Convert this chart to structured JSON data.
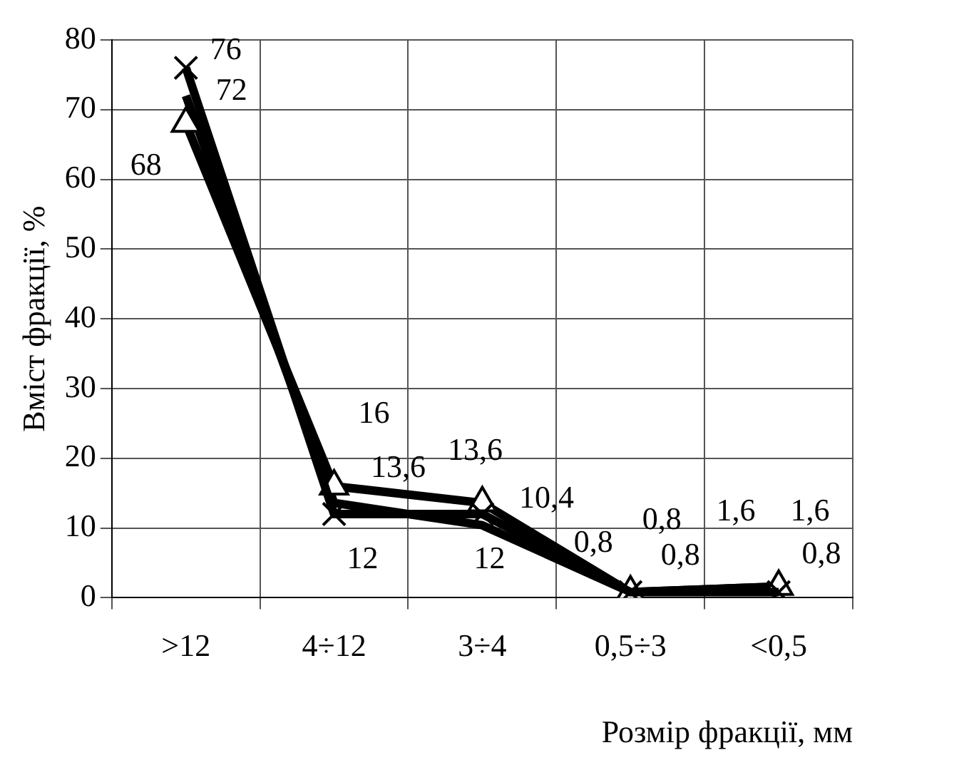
{
  "chart_data": {
    "type": "line",
    "xlabel": "Розмір фракції, мм",
    "ylabel": "Вміст фракції, %",
    "categories": [
      ">12",
      "4÷12",
      "3÷4",
      "0,5÷3",
      "<0,5"
    ],
    "ylim": [
      0,
      80
    ],
    "yticks": [
      0,
      10,
      20,
      30,
      40,
      50,
      60,
      70,
      80
    ],
    "grid": true,
    "legend": false,
    "series": [
      {
        "color": "#000000",
        "marker": "cross",
        "values": [
          76,
          12,
          12,
          0.8,
          0.8
        ],
        "value_labels": [
          "76",
          "12",
          "12",
          "0,8",
          "0,8"
        ]
      },
      {
        "color": "#000000",
        "marker": "triangle",
        "values": [
          68,
          16,
          13.6,
          0.8,
          1.6
        ],
        "value_labels": [
          "68",
          "16",
          "13,6",
          "0,8",
          "1,6"
        ]
      },
      {
        "color": "#000000",
        "marker": "none",
        "values": [
          72,
          13.6,
          10.4,
          0.8,
          1.6
        ],
        "value_labels": [
          "72",
          "13,6",
          "10,4",
          "0,8",
          "1,6"
        ]
      }
    ]
  }
}
